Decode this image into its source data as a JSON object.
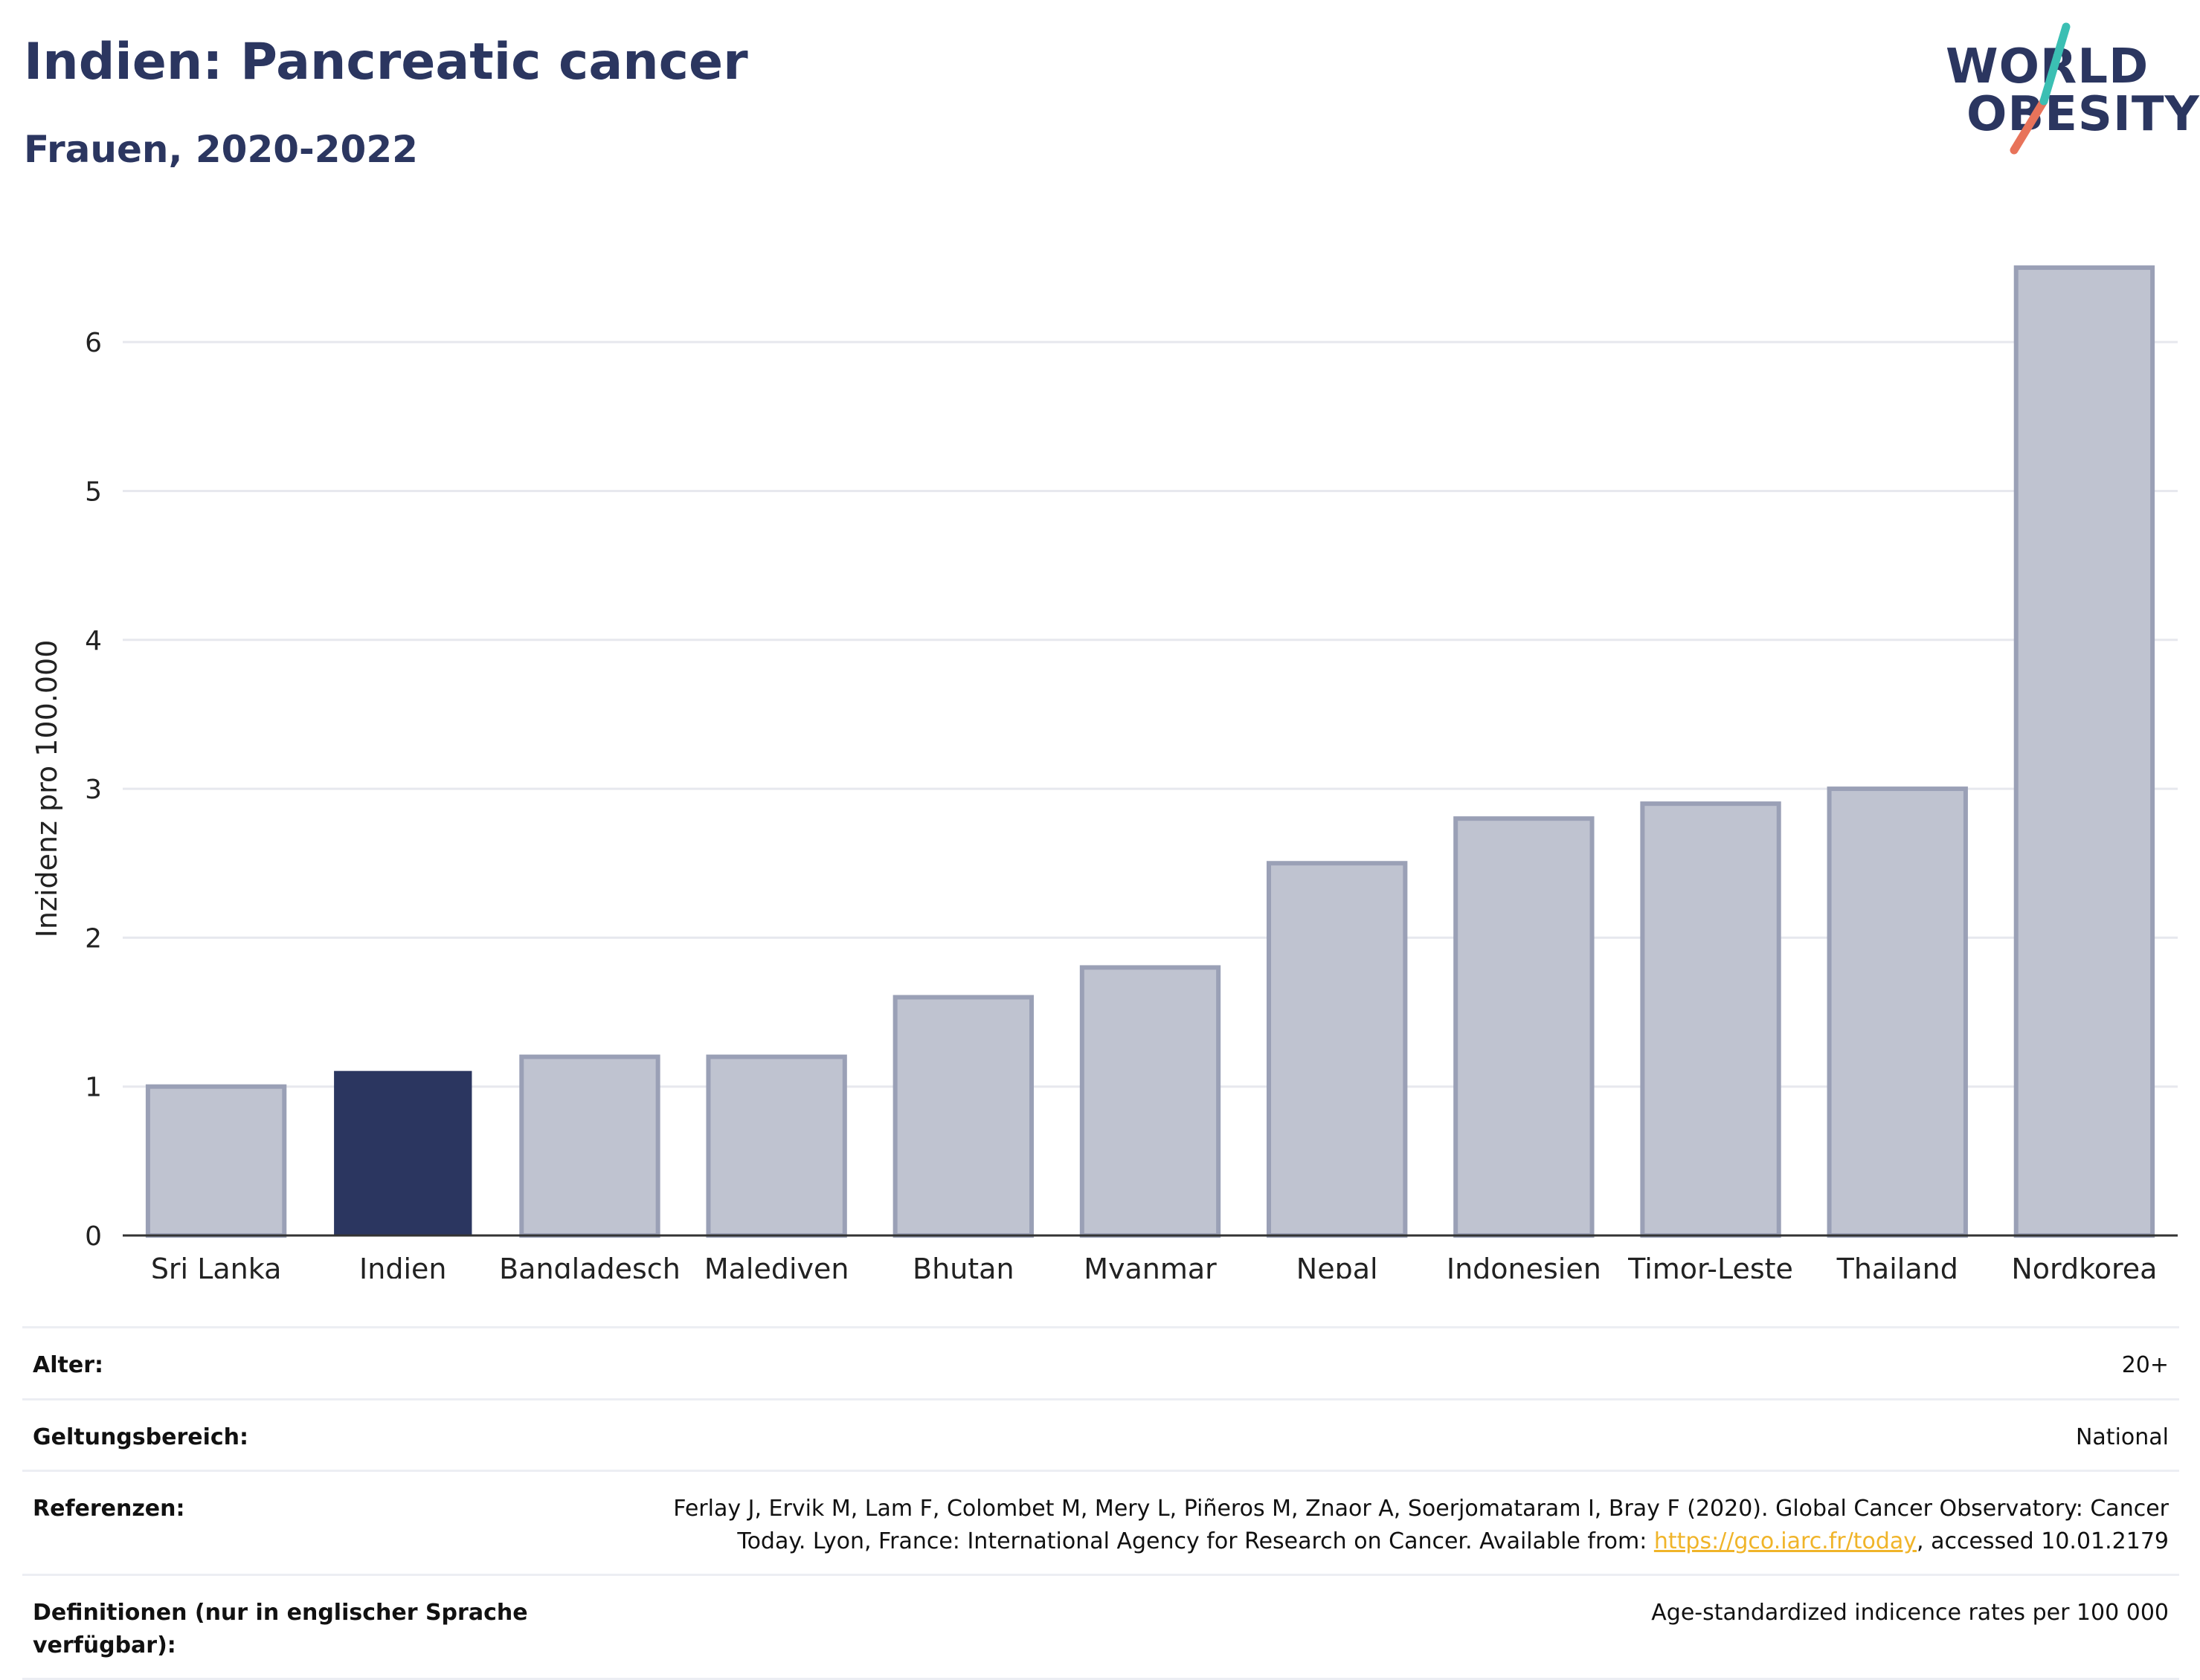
{
  "header": {
    "title": "Indien: Pancreatic cancer",
    "subtitle": "Frauen, 2020-2022"
  },
  "logo": {
    "line1": "WORLD",
    "line2": "OBESITY"
  },
  "colors": {
    "highlight": "#2b3660",
    "bar_fill": "#bfc3d0",
    "bar_stroke": "#9aa0b6",
    "grid": "#e7e8ee"
  },
  "chart_data": {
    "type": "bar",
    "categories": [
      "Sri Lanka",
      "Indien",
      "Bangladesch",
      "Malediven",
      "Bhutan",
      "Myanmar",
      "Nepal",
      "Indonesien",
      "Timor-Leste",
      "Thailand",
      "Nordkorea"
    ],
    "values": [
      1.0,
      1.1,
      1.2,
      1.2,
      1.6,
      1.8,
      2.5,
      2.8,
      2.9,
      3.0,
      6.5
    ],
    "highlight": "Indien",
    "ylabel": "Inzidenz pro 100.000",
    "xlabel": "",
    "ylim": [
      0,
      6.6
    ],
    "yticks": [
      0,
      1,
      2,
      3,
      4,
      5,
      6
    ],
    "grid": true
  },
  "info": {
    "age": {
      "label": "Alter:",
      "value": "20+"
    },
    "scope": {
      "label": "Geltungsbereich:",
      "value": "National"
    },
    "references": {
      "label": "Referenzen:",
      "text1": "Ferlay J, Ervik M, Lam F, Colombet M, Mery L, Piñeros M, Znaor A, Soerjomataram I, Bray F (2020). Global Cancer Observatory: Cancer Today. Lyon, France: International Agency for Research on Cancer. Available from: ",
      "link": "https://gco.iarc.fr/today",
      "text2": ", accessed 10.01.2179"
    },
    "definitions": {
      "label": "Definitionen (nur in englischer Sprache verfügbar):",
      "value": "Age-standardized indicence rates per 100 000"
    }
  }
}
